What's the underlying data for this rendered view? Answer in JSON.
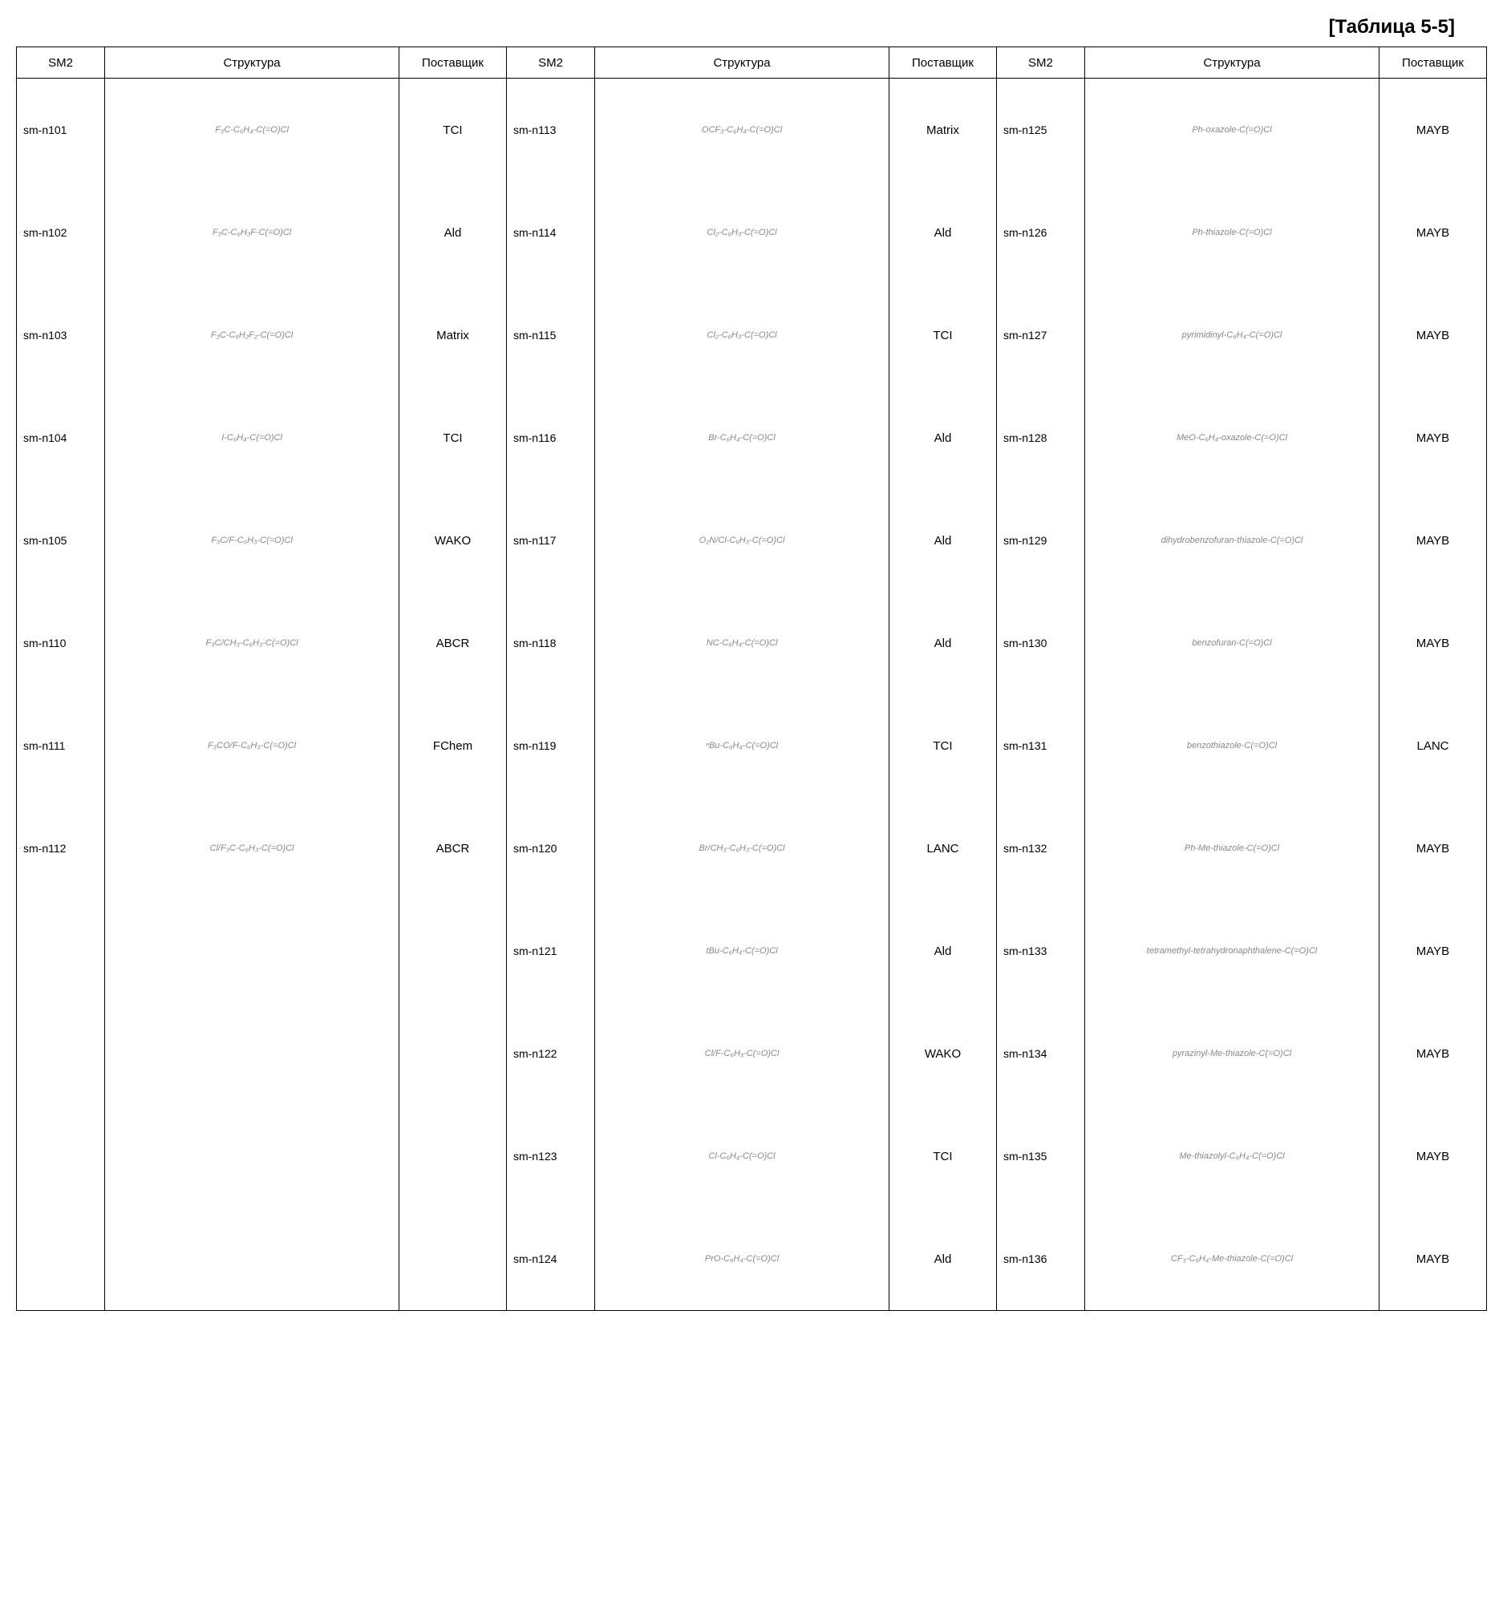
{
  "title": "[Таблица 5-5]",
  "headers": {
    "sm2": "SM2",
    "structure": "Структура",
    "supplier": "Поставщик"
  },
  "columns": [
    {
      "rows": [
        {
          "sm2": "sm-n101",
          "structure": "F₃C-C₆H₄-C(=O)Cl",
          "supplier": "TCI"
        },
        {
          "sm2": "sm-n102",
          "structure": "F₃C-C₆H₃F-C(=O)Cl",
          "supplier": "Ald"
        },
        {
          "sm2": "sm-n103",
          "structure": "F₃C-C₆H₂F₂-C(=O)Cl",
          "supplier": "Matrix"
        },
        {
          "sm2": "sm-n104",
          "structure": "I-C₆H₄-C(=O)Cl",
          "supplier": "TCI"
        },
        {
          "sm2": "sm-n105",
          "structure": "F₃C/F-C₆H₃-C(=O)Cl",
          "supplier": "WAKO"
        },
        {
          "sm2": "sm-n110",
          "structure": "F₃C/CH₃-C₆H₃-C(=O)Cl",
          "supplier": "ABCR"
        },
        {
          "sm2": "sm-n111",
          "structure": "F₃CO/F-C₆H₃-C(=O)Cl",
          "supplier": "FChem"
        },
        {
          "sm2": "sm-n112",
          "structure": "Cl/F₃C-C₆H₃-C(=O)Cl",
          "supplier": "ABCR"
        },
        {
          "sm2": "",
          "structure": "",
          "supplier": ""
        },
        {
          "sm2": "",
          "structure": "",
          "supplier": ""
        },
        {
          "sm2": "",
          "structure": "",
          "supplier": ""
        },
        {
          "sm2": "",
          "structure": "",
          "supplier": ""
        }
      ]
    },
    {
      "rows": [
        {
          "sm2": "sm-n113",
          "structure": "OCF₃-C₆H₄-C(=O)Cl",
          "supplier": "Matrix"
        },
        {
          "sm2": "sm-n114",
          "structure": "Cl₂-C₆H₃-C(=O)Cl",
          "supplier": "Ald"
        },
        {
          "sm2": "sm-n115",
          "structure": "Cl₂-C₆H₃-C(=O)Cl",
          "supplier": "TCI"
        },
        {
          "sm2": "sm-n116",
          "structure": "Br-C₆H₄-C(=O)Cl",
          "supplier": "Ald"
        },
        {
          "sm2": "sm-n117",
          "structure": "O₂N/Cl-C₆H₃-C(=O)Cl",
          "supplier": "Ald"
        },
        {
          "sm2": "sm-n118",
          "structure": "NC-C₆H₄-C(=O)Cl",
          "supplier": "Ald"
        },
        {
          "sm2": "sm-n119",
          "structure": "ⁿBu-C₆H₄-C(=O)Cl",
          "supplier": "TCI"
        },
        {
          "sm2": "sm-n120",
          "structure": "Br/CH₃-C₆H₃-C(=O)Cl",
          "supplier": "LANC"
        },
        {
          "sm2": "sm-n121",
          "structure": "tBu-C₆H₄-C(=O)Cl",
          "supplier": "Ald"
        },
        {
          "sm2": "sm-n122",
          "structure": "Cl/F-C₆H₃-C(=O)Cl",
          "supplier": "WAKO"
        },
        {
          "sm2": "sm-n123",
          "structure": "Cl-C₆H₄-C(=O)Cl",
          "supplier": "TCI"
        },
        {
          "sm2": "sm-n124",
          "structure": "PrO-C₆H₄-C(=O)Cl",
          "supplier": "Ald"
        }
      ]
    },
    {
      "rows": [
        {
          "sm2": "sm-n125",
          "structure": "Ph-oxazole-C(=O)Cl",
          "supplier": "MAYB"
        },
        {
          "sm2": "sm-n126",
          "structure": "Ph-thiazole-C(=O)Cl",
          "supplier": "MAYB"
        },
        {
          "sm2": "sm-n127",
          "structure": "pyrimidinyl-C₆H₄-C(=O)Cl",
          "supplier": "MAYB"
        },
        {
          "sm2": "sm-n128",
          "structure": "MeO-C₆H₄-oxazole-C(=O)Cl",
          "supplier": "MAYB"
        },
        {
          "sm2": "sm-n129",
          "structure": "dihydrobenzofuran-thiazole-C(=O)Cl",
          "supplier": "MAYB"
        },
        {
          "sm2": "sm-n130",
          "structure": "benzofuran-C(=O)Cl",
          "supplier": "MAYB"
        },
        {
          "sm2": "sm-n131",
          "structure": "benzothiazole-C(=O)Cl",
          "supplier": "LANC"
        },
        {
          "sm2": "sm-n132",
          "structure": "Ph-Me-thiazole-C(=O)Cl",
          "supplier": "MAYB"
        },
        {
          "sm2": "sm-n133",
          "structure": "tetramethyl-tetrahydronaphthalene-C(=O)Cl",
          "supplier": "MAYB"
        },
        {
          "sm2": "sm-n134",
          "structure": "pyrazinyl-Me-thiazole-C(=O)Cl",
          "supplier": "MAYB"
        },
        {
          "sm2": "sm-n135",
          "structure": "Me-thiazolyl-C₆H₄-C(=O)Cl",
          "supplier": "MAYB"
        },
        {
          "sm2": "sm-n136",
          "structure": "CF₃-C₆H₄-Me-thiazole-C(=O)Cl",
          "supplier": "MAYB"
        }
      ]
    }
  ]
}
